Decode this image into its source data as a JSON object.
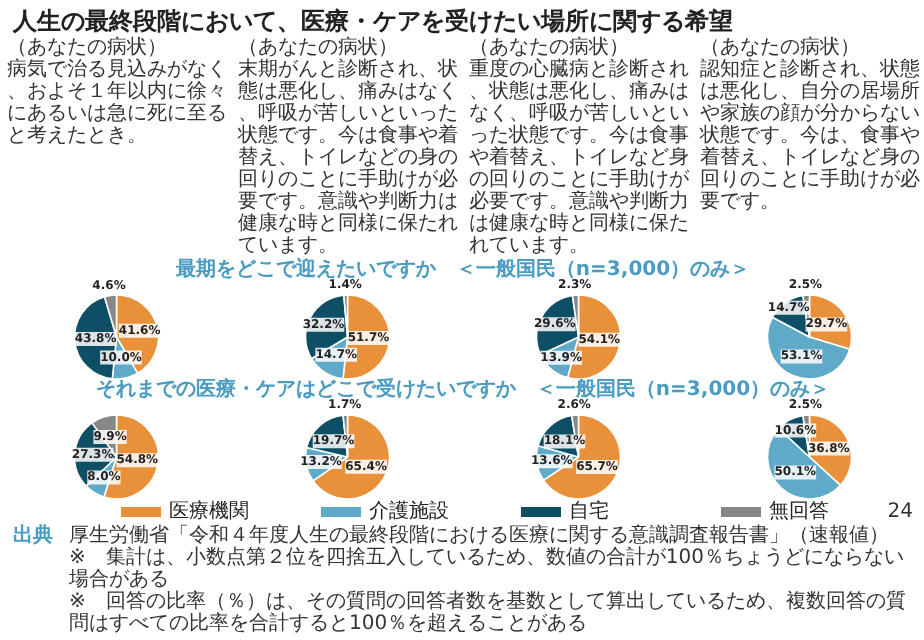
{
  "chart_data": [
    {
      "type": "other",
      "title": "人生の最終段階において、医療・ケアを受けたい場所に関する希望",
      "annotations": [
        "出典",
        "厚生労働省「令和４年度人生の最終段階における医療に関する意識調査報告書」（速報値）",
        "※　集計は、小数点第２位を四捨五入しているため、数値の合計が100％ちょうどにならない場合がある",
        "※　回答の比率（％）は、その質問の回答者数を基数として算出しているため、複数回答の質問はすべての比率を合計すると100％を超えることがある",
        "24"
      ]
    },
    {
      "type": "pie",
      "legend": "bottom",
      "subtitle": "最期をどこで迎えたいですか　＜一般国民（n=3,000）のみ＞",
      "annotations": [
        "（あなたの病状）",
        "病気で治る見込みがなく、およそ１年以内に徐々にあるいは急に死に至ると考えたとき。"
      ],
      "categories": [
        "医療機関",
        "介護施設",
        "自宅",
        "無回答"
      ],
      "values": [
        41.6,
        10.0,
        43.8,
        4.6
      ],
      "colors": [
        "#e8913a",
        "#5eaac8",
        "#0e4f66",
        "#878787"
      ],
      "value_labels": [
        "41.6%",
        "10.0%",
        "43.8%",
        "4.6%"
      ]
    },
    {
      "type": "pie",
      "annotations": [
        "（あなたの病状）",
        "末期がんと診断され、状態は悪化し、痛みはなく、呼吸が苦しいといった状態です。今は食事や着替え、トイレなどの身の回りのことに手助けが必要です。意識や判断力は健康な時と同様に保たれています。"
      ],
      "categories": [
        null,
        null,
        null,
        null
      ],
      "values": [
        51.7,
        14.7,
        32.2,
        1.4
      ],
      "colors": [
        "#e8913a",
        "#5eaac8",
        "#0e4f66",
        "#878787"
      ],
      "value_labels": [
        "51.7%",
        "14.7%",
        "32.2%",
        "1.4%"
      ]
    },
    {
      "type": "pie",
      "annotations": [
        "（あなたの病状）",
        "重度の心臓病と診断され、状態は悪化し、痛みはなく、呼吸が苦しいといった状態です。今は食事や着替え、トイレなど身の回りのことに手助けが必要です。意識や判断力は健康な時と同様に保たれています。"
      ],
      "categories": [
        null,
        null,
        null,
        null
      ],
      "values": [
        54.1,
        13.9,
        29.6,
        2.3
      ],
      "colors": [
        "#e8913a",
        "#5eaac8",
        "#0e4f66",
        "#878787"
      ],
      "value_labels": [
        "54.1%",
        "13.9%",
        "29.6%",
        "2.3%"
      ]
    },
    {
      "type": "pie",
      "annotations": [
        "（あなたの病状）",
        "認知症と診断され、状態は悪化し、自分の居場所や家族の顔が分からない状態です。今は、食事や着替え、トイレなど身の回りのことに手助けが必要です。"
      ],
      "categories": [
        null,
        null,
        null,
        null
      ],
      "values": [
        29.7,
        53.1,
        14.7,
        2.5
      ],
      "colors": [
        "#e8913a",
        "#5eaac8",
        "#0e4f66",
        "#878787"
      ],
      "value_labels": [
        "29.7%",
        "53.1%",
        "14.7%",
        "2.5%"
      ]
    },
    {
      "type": "pie",
      "subtitle": "それまでの医療・ケアはどこで受けたいですか　＜一般国民（n=3,000）のみ＞",
      "categories": [
        null,
        null,
        null,
        null
      ],
      "values": [
        54.8,
        8.0,
        27.3,
        9.9
      ],
      "colors": [
        "#e8913a",
        "#5eaac8",
        "#0e4f66",
        "#878787"
      ],
      "value_labels": [
        "54.8%",
        "8.0%",
        "27.3%",
        "9.9%"
      ]
    },
    {
      "type": "pie",
      "categories": [
        null,
        null,
        null,
        null
      ],
      "values": [
        65.4,
        13.2,
        19.7,
        1.7
      ],
      "colors": [
        "#e8913a",
        "#5eaac8",
        "#0e4f66",
        "#878787"
      ],
      "value_labels": [
        "65.4%",
        "13.2%",
        "19.7%",
        "1.7%"
      ]
    },
    {
      "type": "pie",
      "categories": [
        null,
        null,
        null,
        null
      ],
      "values": [
        65.7,
        13.6,
        18.1,
        2.6
      ],
      "colors": [
        "#e8913a",
        "#5eaac8",
        "#0e4f66",
        "#878787"
      ],
      "value_labels": [
        "65.7%",
        "13.6%",
        "18.1%",
        "2.6%"
      ]
    },
    {
      "type": "pie",
      "categories": [
        null,
        null,
        null,
        null
      ],
      "values": [
        36.8,
        50.1,
        10.6,
        2.5
      ],
      "colors": [
        "#e8913a",
        "#5eaac8",
        "#0e4f66",
        "#878787"
      ],
      "value_labels": [
        "36.8%",
        "50.1%",
        "10.6%",
        "2.5%"
      ]
    }
  ]
}
